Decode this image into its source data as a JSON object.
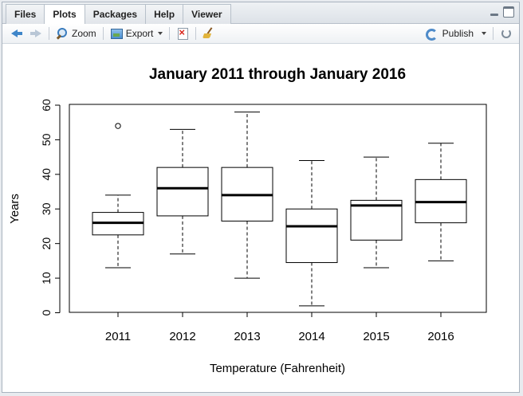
{
  "tabs": [
    {
      "label": "Files"
    },
    {
      "label": "Plots"
    },
    {
      "label": "Packages"
    },
    {
      "label": "Help"
    },
    {
      "label": "Viewer"
    }
  ],
  "active_tab": "Plots",
  "toolbar": {
    "zoom_label": "Zoom",
    "export_label": "Export",
    "publish_label": "Publish"
  },
  "chart_data": {
    "type": "boxplot",
    "title": "January 2011 through January 2016",
    "xlabel": "Temperature (Fahrenheit)",
    "ylabel": "Years",
    "ylim": [
      0,
      60
    ],
    "yticks": [
      0,
      10,
      20,
      30,
      40,
      50,
      60
    ],
    "categories": [
      "2011",
      "2012",
      "2013",
      "2014",
      "2015",
      "2016"
    ],
    "boxes": [
      {
        "whisker_low": 13,
        "q1": 22.5,
        "median": 26,
        "q3": 29,
        "whisker_high": 34,
        "outliers": [
          54
        ]
      },
      {
        "whisker_low": 17,
        "q1": 28,
        "median": 36,
        "q3": 42,
        "whisker_high": 53,
        "outliers": []
      },
      {
        "whisker_low": 10,
        "q1": 26.5,
        "median": 34,
        "q3": 42,
        "whisker_high": 58,
        "outliers": []
      },
      {
        "whisker_low": 2,
        "q1": 14.5,
        "median": 25,
        "q3": 30,
        "whisker_high": 44,
        "outliers": []
      },
      {
        "whisker_low": 13,
        "q1": 21,
        "median": 31,
        "q3": 32.5,
        "whisker_high": 45,
        "outliers": []
      },
      {
        "whisker_low": 15,
        "q1": 26,
        "median": 32,
        "q3": 38.5,
        "whisker_high": 49,
        "outliers": []
      }
    ]
  }
}
